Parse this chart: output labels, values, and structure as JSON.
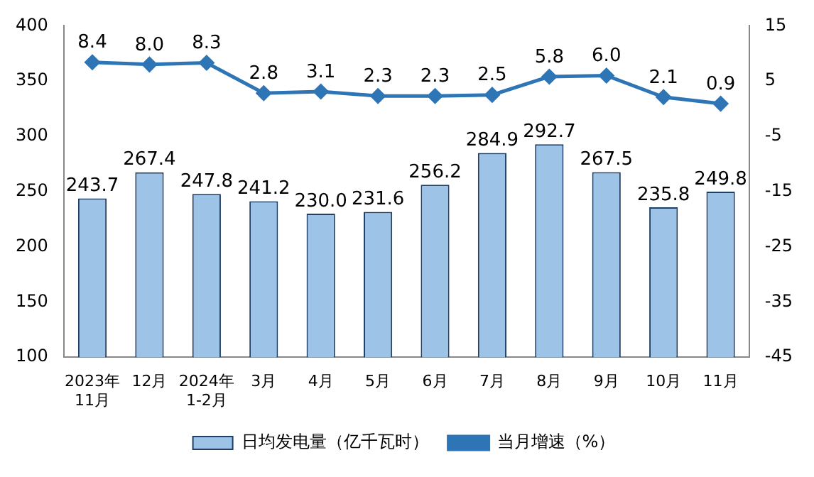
{
  "chart_data": {
    "type": "bar",
    "categories": [
      "2023年\n11月",
      "12月",
      "2024年\n1-2月",
      "3月",
      "4月",
      "5月",
      "6月",
      "7月",
      "8月",
      "9月",
      "10月",
      "11月"
    ],
    "series": [
      {
        "name": "日均发电量（亿千瓦时）",
        "color": "#9dc3e6",
        "values": [
          243.7,
          267.4,
          247.8,
          241.2,
          230,
          231.6,
          256.2,
          284.9,
          292.7,
          267.5,
          235.8,
          249.8
        ],
        "value_labels": [
          "243.7",
          "267.4",
          "247.8",
          "241.2",
          "230.0",
          "231.6",
          "256.2",
          "284.9",
          "292.7",
          "267.5",
          "235.8",
          "249.8"
        ]
      },
      {
        "name": "当月增速（%）",
        "type": "line",
        "axis": "y2",
        "color": "#2e75b6",
        "marker": "diamond",
        "values": [
          8.4,
          8,
          8.3,
          2.8,
          3.1,
          2.3,
          2.3,
          2.5,
          5.8,
          6,
          2.1,
          0.9
        ],
        "value_labels": [
          "8.4",
          "8.0",
          "8.3",
          "2.8",
          "3.1",
          "2.3",
          "2.3",
          "2.5",
          "5.8",
          "6.0",
          "2.1",
          "0.9"
        ]
      }
    ],
    "ylim": [
      100,
      400
    ],
    "yticks": [
      100,
      150,
      200,
      250,
      300,
      350,
      400
    ],
    "y2lim": [
      -45,
      15
    ],
    "y2ticks": [
      -45,
      -35,
      -25,
      -15,
      -5,
      5,
      15
    ],
    "grid": false,
    "legend": "bottom"
  }
}
